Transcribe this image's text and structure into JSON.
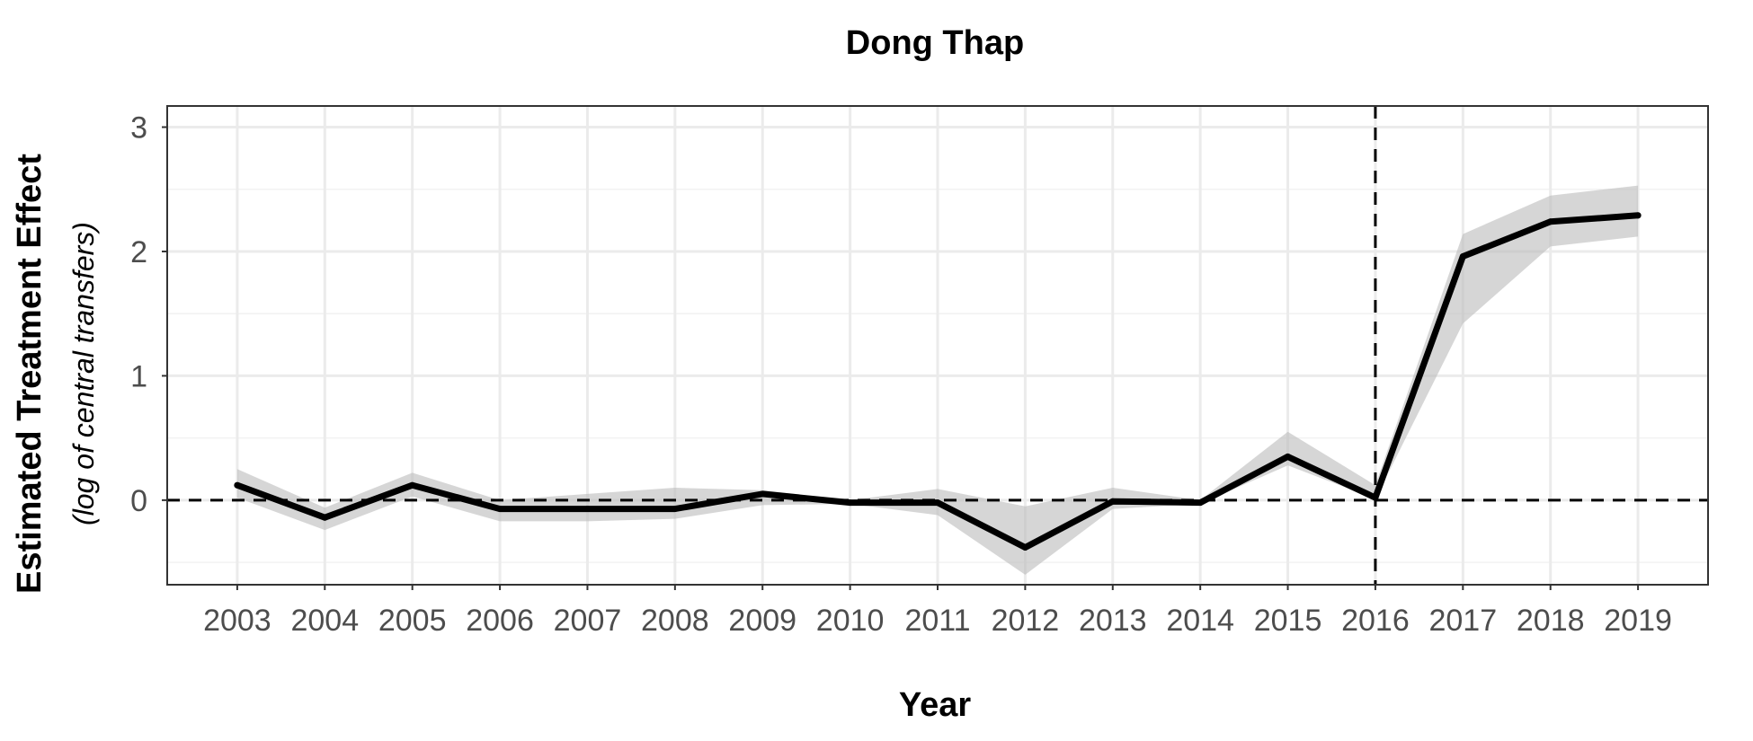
{
  "chart_data": {
    "type": "line",
    "title": "Dong Thap",
    "xlabel": "Year",
    "ylabel": "Estimated Treatment Effect",
    "ylabel_sub": "(log of central transfers)",
    "x": [
      2003,
      2004,
      2005,
      2006,
      2007,
      2008,
      2009,
      2010,
      2011,
      2012,
      2013,
      2014,
      2015,
      2016,
      2017,
      2018,
      2019
    ],
    "x_tick_labels": [
      "2003",
      "2004",
      "2005",
      "2006",
      "2007",
      "2008",
      "2009",
      "2010",
      "2011",
      "2012",
      "2013",
      "2014",
      "2015",
      "2016",
      "2017",
      "2018",
      "2019"
    ],
    "y_ticks": [
      0,
      1,
      2,
      3
    ],
    "y_tick_labels": [
      "0",
      "1",
      "2",
      "3"
    ],
    "ylim": [
      -0.68,
      3.17
    ],
    "xlim": [
      2002.2,
      2019.8
    ],
    "series": [
      {
        "values": [
          0.12,
          -0.14,
          0.12,
          -0.07,
          -0.07,
          -0.07,
          0.05,
          -0.02,
          -0.02,
          -0.38,
          -0.01,
          -0.02,
          0.35,
          0.02,
          1.96,
          2.24,
          2.29
        ],
        "lower": [
          0.02,
          -0.24,
          0.03,
          -0.17,
          -0.17,
          -0.15,
          -0.04,
          -0.03,
          -0.12,
          -0.6,
          -0.07,
          -0.03,
          0.28,
          0.01,
          1.42,
          2.04,
          2.12
        ],
        "upper": [
          0.25,
          -0.06,
          0.22,
          0.0,
          0.05,
          0.1,
          0.08,
          0.0,
          0.09,
          -0.05,
          0.1,
          0.0,
          0.55,
          0.12,
          2.14,
          2.45,
          2.53
        ]
      }
    ],
    "reference_lines": {
      "y": 0,
      "x": 2016
    },
    "grid": true,
    "legend": "none",
    "colors": {
      "line": "#000000",
      "band": "#bdbdbd",
      "grid": "#ebebeb",
      "tick_text": "#4d4d4d"
    }
  }
}
